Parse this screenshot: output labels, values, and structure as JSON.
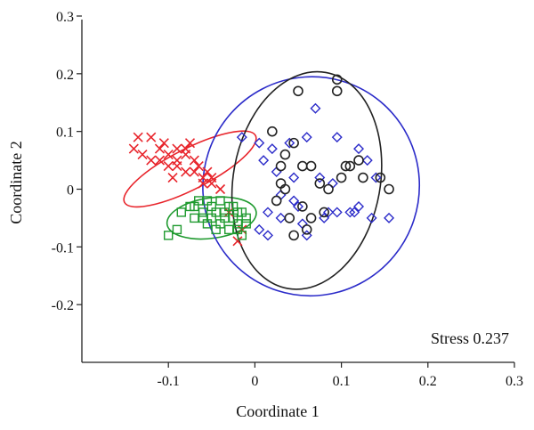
{
  "chart_data": {
    "type": "scatter",
    "xlabel": "Coordinate 1",
    "ylabel": "Coordinate 2",
    "xlim": [
      -0.2,
      0.3
    ],
    "ylim": [
      -0.3,
      0.3
    ],
    "x_ticks": [
      -0.1,
      0,
      0.1,
      0.2,
      0.3
    ],
    "y_ticks": [
      0.3,
      0.2,
      0.1,
      0,
      -0.1,
      -0.2
    ],
    "x_tick_labels": [
      "-0.1",
      "0",
      "0.1",
      "0.2",
      "0.3"
    ],
    "y_tick_labels": [
      "0.3",
      "0.2",
      "0.1",
      "0",
      "-0.1",
      "-0.2"
    ],
    "grid": false,
    "annotation": "Stress 0.237",
    "series": [
      {
        "marker": "x",
        "color": "#e8242b",
        "points": [
          [
            -0.14,
            0.07
          ],
          [
            -0.13,
            0.06
          ],
          [
            -0.12,
            0.05
          ],
          [
            -0.12,
            0.09
          ],
          [
            -0.11,
            0.07
          ],
          [
            -0.11,
            0.05
          ],
          [
            -0.1,
            0.06
          ],
          [
            -0.1,
            0.04
          ],
          [
            -0.09,
            0.07
          ],
          [
            -0.09,
            0.05
          ],
          [
            -0.09,
            0.04
          ],
          [
            -0.08,
            0.06
          ],
          [
            -0.08,
            0.03
          ],
          [
            -0.08,
            0.07
          ],
          [
            -0.07,
            0.05
          ],
          [
            -0.07,
            0.03
          ],
          [
            -0.065,
            0.04
          ],
          [
            -0.06,
            0.02
          ],
          [
            -0.06,
            0.01
          ],
          [
            -0.055,
            0.03
          ],
          [
            -0.05,
            0.01
          ],
          [
            -0.05,
            0.02
          ],
          [
            -0.04,
            0.0
          ],
          [
            -0.03,
            -0.04
          ],
          [
            -0.02,
            -0.09
          ],
          [
            -0.015,
            -0.07
          ],
          [
            -0.135,
            0.09
          ],
          [
            -0.105,
            0.08
          ],
          [
            -0.075,
            0.08
          ],
          [
            -0.095,
            0.02
          ]
        ],
        "ellipse": {
          "cx": -0.075,
          "cy": 0.035,
          "rx": 0.085,
          "ry": 0.035,
          "angle_deg": -27
        }
      },
      {
        "marker": "square",
        "color": "#1f9a2f",
        "points": [
          [
            -0.1,
            -0.08
          ],
          [
            -0.09,
            -0.07
          ],
          [
            -0.085,
            -0.04
          ],
          [
            -0.075,
            -0.03
          ],
          [
            -0.07,
            -0.05
          ],
          [
            -0.065,
            -0.02
          ],
          [
            -0.06,
            -0.04
          ],
          [
            -0.055,
            -0.06
          ],
          [
            -0.05,
            -0.03
          ],
          [
            -0.05,
            -0.05
          ],
          [
            -0.045,
            -0.04
          ],
          [
            -0.04,
            -0.02
          ],
          [
            -0.04,
            -0.06
          ],
          [
            -0.035,
            -0.05
          ],
          [
            -0.03,
            -0.03
          ],
          [
            -0.03,
            -0.07
          ],
          [
            -0.025,
            -0.05
          ],
          [
            -0.02,
            -0.04
          ],
          [
            -0.02,
            -0.06
          ],
          [
            -0.015,
            -0.08
          ],
          [
            -0.01,
            -0.05
          ],
          [
            -0.055,
            -0.02
          ],
          [
            -0.045,
            -0.07
          ],
          [
            -0.035,
            -0.04
          ],
          [
            -0.025,
            -0.03
          ],
          [
            -0.02,
            -0.07
          ],
          [
            -0.015,
            -0.04
          ],
          [
            -0.01,
            -0.06
          ],
          [
            -0.06,
            -0.05
          ],
          [
            -0.07,
            -0.03
          ]
        ],
        "ellipse": {
          "cx": -0.05,
          "cy": -0.05,
          "rx": 0.052,
          "ry": 0.035,
          "angle_deg": -8
        }
      },
      {
        "marker": "diamond",
        "color": "#2b2bc9",
        "points": [
          [
            -0.015,
            0.09
          ],
          [
            0.005,
            0.08
          ],
          [
            0.02,
            0.07
          ],
          [
            0.04,
            0.08
          ],
          [
            0.06,
            0.09
          ],
          [
            0.07,
            0.14
          ],
          [
            0.095,
            0.09
          ],
          [
            0.12,
            0.07
          ],
          [
            0.13,
            0.05
          ],
          [
            0.01,
            0.05
          ],
          [
            0.025,
            0.03
          ],
          [
            0.045,
            0.02
          ],
          [
            0.075,
            0.02
          ],
          [
            0.09,
            0.01
          ],
          [
            0.115,
            -0.04
          ],
          [
            0.135,
            -0.05
          ],
          [
            0.155,
            -0.05
          ],
          [
            0.015,
            -0.04
          ],
          [
            0.03,
            -0.05
          ],
          [
            0.055,
            -0.06
          ],
          [
            0.08,
            -0.05
          ],
          [
            0.095,
            -0.04
          ],
          [
            0.12,
            -0.03
          ],
          [
            0.045,
            -0.02
          ],
          [
            0.03,
            -0.01
          ],
          [
            0.015,
            -0.08
          ],
          [
            0.06,
            -0.08
          ],
          [
            0.005,
            -0.07
          ],
          [
            0.085,
            -0.04
          ],
          [
            0.05,
            -0.03
          ],
          [
            0.14,
            0.02
          ],
          [
            0.11,
            -0.04
          ]
        ],
        "ellipse": {
          "cx": 0.065,
          "cy": 0.005,
          "rx": 0.125,
          "ry": 0.19,
          "angle_deg": 18
        }
      },
      {
        "marker": "circle",
        "color": "#222222",
        "points": [
          [
            0.05,
            0.17
          ],
          [
            0.095,
            0.19
          ],
          [
            0.095,
            0.17
          ],
          [
            0.02,
            0.1
          ],
          [
            0.035,
            0.06
          ],
          [
            0.045,
            0.08
          ],
          [
            0.055,
            0.04
          ],
          [
            0.065,
            0.04
          ],
          [
            0.11,
            0.04
          ],
          [
            0.125,
            0.02
          ],
          [
            0.145,
            0.02
          ],
          [
            0.03,
            0.01
          ],
          [
            0.035,
            0.0
          ],
          [
            0.075,
            0.01
          ],
          [
            0.085,
            0.0
          ],
          [
            0.1,
            0.02
          ],
          [
            0.155,
            0.0
          ],
          [
            0.025,
            -0.02
          ],
          [
            0.055,
            -0.03
          ],
          [
            0.08,
            -0.04
          ],
          [
            0.04,
            -0.05
          ],
          [
            0.06,
            -0.07
          ],
          [
            0.045,
            -0.08
          ],
          [
            0.105,
            0.04
          ],
          [
            0.03,
            0.04
          ],
          [
            0.065,
            -0.05
          ],
          [
            0.12,
            0.05
          ]
        ],
        "ellipse": {
          "cx": 0.06,
          "cy": 0.015,
          "rx": 0.085,
          "ry": 0.19,
          "angle_deg": 10
        }
      }
    ]
  }
}
